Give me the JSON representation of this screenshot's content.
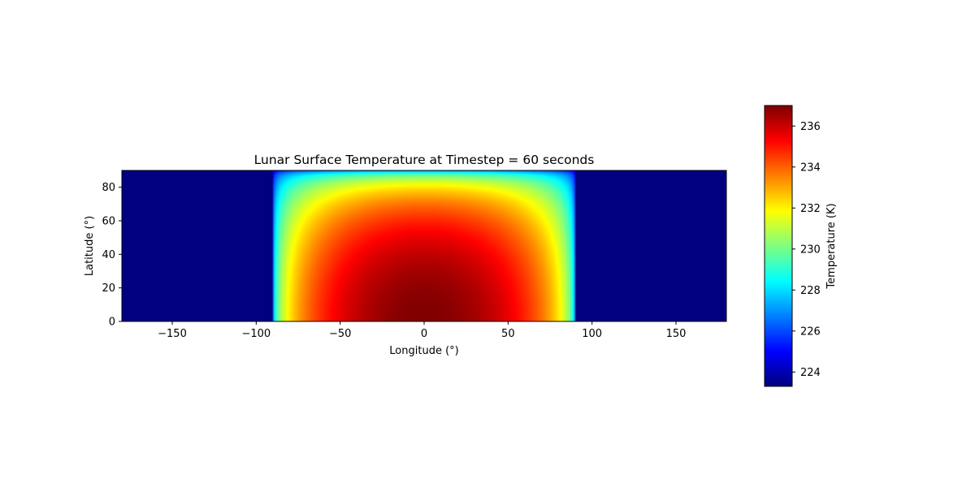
{
  "chart_data": {
    "type": "heatmap",
    "title": "Lunar Surface Temperature at Timestep = 60 seconds",
    "xlabel": "Longitude (°)",
    "ylabel": "Latitude (°)",
    "xlim": [
      -180,
      180
    ],
    "ylim": [
      0,
      90
    ],
    "x_ticks": [
      -150,
      -100,
      -50,
      0,
      50,
      100,
      150
    ],
    "x_tick_labels": [
      "−150",
      "−100",
      "−50",
      "0",
      "50",
      "100",
      "150"
    ],
    "y_ticks": [
      0,
      20,
      40,
      60,
      80
    ],
    "y_tick_labels": [
      "0",
      "20",
      "40",
      "60",
      "80"
    ],
    "colormap": "jet",
    "value_range": [
      223.3,
      237.0
    ],
    "field": {
      "description_of_model": "night_value + (peak - night_value) * cos(lon)^0.25 * cos(lat)^0.25 on the day side (|lon| < 90), night_value elsewhere",
      "night_value": 223.3,
      "peak_value": 237.0,
      "day_side_longitude_range": [
        -90,
        90
      ]
    },
    "colorbar": {
      "label": "Temperature (K)",
      "ticks": [
        224,
        226,
        228,
        230,
        232,
        234,
        236
      ],
      "tick_labels": [
        "224",
        "226",
        "228",
        "230",
        "232",
        "234",
        "236"
      ],
      "range": [
        223.3,
        237.0
      ]
    },
    "grid": false,
    "legend": "none"
  }
}
